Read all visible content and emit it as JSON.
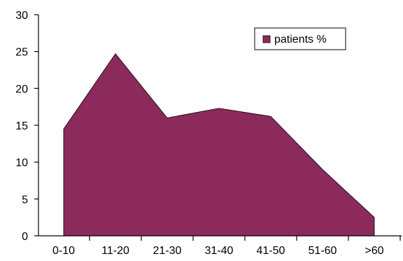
{
  "chart_data": {
    "type": "area",
    "categories": [
      "0-10",
      "11-20",
      "21-30",
      "31-40",
      "41-50",
      "51-60",
      ">60"
    ],
    "series": [
      {
        "name": "patients %",
        "values": [
          14.5,
          24.7,
          16.0,
          17.3,
          16.2,
          9.0,
          2.5
        ]
      }
    ],
    "ylim": [
      0,
      30
    ],
    "yticks": [
      0,
      5,
      10,
      15,
      20,
      25,
      30
    ],
    "title": "",
    "xlabel": "",
    "ylabel": "",
    "legend": "top-right",
    "grid": false,
    "colors": {
      "area": "#8b2a5b",
      "axis": "#000000"
    }
  }
}
